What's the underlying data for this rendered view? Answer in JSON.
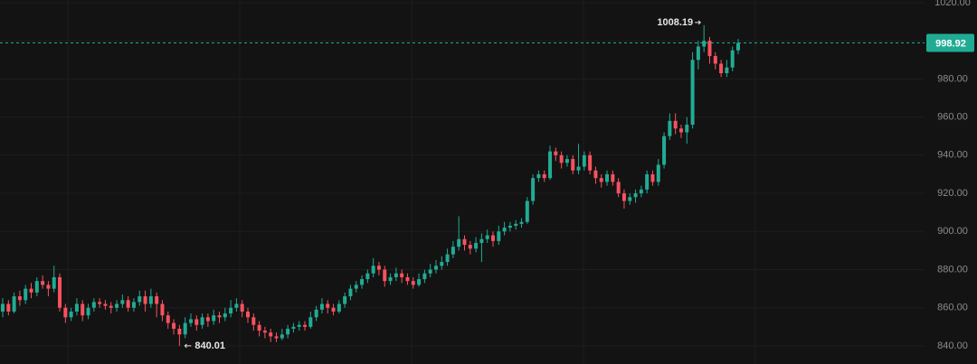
{
  "chart_data": {
    "type": "candlestick",
    "up_color": "#22ab94",
    "down_color": "#f7525f",
    "ylim": [
      830.5,
      1021.4
    ],
    "yticks": [
      {
        "value": 840,
        "label": "840.00"
      },
      {
        "value": 860,
        "label": "860.00"
      },
      {
        "value": 880,
        "label": "880.00"
      },
      {
        "value": 900,
        "label": "900.00"
      },
      {
        "value": 920,
        "label": "920.00"
      },
      {
        "value": 940,
        "label": "940.00"
      },
      {
        "value": 960,
        "label": "960.00"
      },
      {
        "value": 980,
        "label": "980.00"
      },
      {
        "value": 1000,
        "label": "1000.00"
      },
      {
        "value": 1020,
        "label": "1020.00"
      }
    ],
    "grid": true,
    "price_line": 998.92,
    "high_label": 1008.19,
    "low_label": 840.01,
    "candles": [
      [
        858,
        865,
        855,
        862
      ],
      [
        862,
        864,
        856,
        858
      ],
      [
        858,
        868,
        857,
        866
      ],
      [
        866,
        869,
        861,
        864
      ],
      [
        864,
        872,
        862,
        870
      ],
      [
        870,
        873,
        865,
        868
      ],
      [
        868,
        876,
        866,
        874
      ],
      [
        874,
        877,
        870,
        872
      ],
      [
        872,
        874,
        866,
        870
      ],
      [
        870,
        882,
        868,
        876
      ],
      [
        876,
        878,
        858,
        860
      ],
      [
        860,
        862,
        852,
        855
      ],
      [
        855,
        860,
        853,
        858
      ],
      [
        858,
        865,
        856,
        862
      ],
      [
        862,
        864,
        853,
        856
      ],
      [
        856,
        862,
        854,
        860
      ],
      [
        860,
        865,
        858,
        863
      ],
      [
        863,
        865,
        860,
        862
      ],
      [
        862,
        864,
        859,
        861
      ],
      [
        861,
        863,
        857,
        860
      ],
      [
        860,
        864,
        858,
        862
      ],
      [
        862,
        867,
        860,
        864
      ],
      [
        864,
        866,
        858,
        860
      ],
      [
        860,
        865,
        858,
        863
      ],
      [
        863,
        869,
        861,
        866
      ],
      [
        866,
        869,
        858,
        862
      ],
      [
        862,
        870,
        860,
        866
      ],
      [
        866,
        868,
        855,
        862
      ],
      [
        862,
        864,
        853,
        856
      ],
      [
        856,
        858,
        849,
        852
      ],
      [
        852,
        854,
        846,
        849
      ],
      [
        849,
        851,
        840.01,
        846
      ],
      [
        846,
        855,
        844,
        852
      ],
      [
        852,
        857,
        850,
        854
      ],
      [
        854,
        856,
        848,
        851
      ],
      [
        851,
        857,
        849,
        855
      ],
      [
        855,
        857,
        850,
        853
      ],
      [
        853,
        859,
        851,
        856
      ],
      [
        856,
        858,
        852,
        855
      ],
      [
        855,
        860,
        853,
        857
      ],
      [
        857,
        864,
        855,
        860
      ],
      [
        860,
        865,
        858,
        862
      ],
      [
        862,
        864,
        855,
        858
      ],
      [
        858,
        860,
        852,
        855
      ],
      [
        855,
        857,
        848,
        851
      ],
      [
        851,
        853,
        845,
        848
      ],
      [
        848,
        850,
        844,
        847
      ],
      [
        847,
        849,
        842,
        845
      ],
      [
        845,
        847,
        842,
        844
      ],
      [
        844,
        849,
        843,
        846
      ],
      [
        846,
        851,
        844,
        849
      ],
      [
        849,
        852,
        847,
        850
      ],
      [
        850,
        853,
        848,
        851
      ],
      [
        851,
        853,
        848,
        850
      ],
      [
        850,
        858,
        849,
        855
      ],
      [
        855,
        861,
        853,
        859
      ],
      [
        859,
        865,
        857,
        862
      ],
      [
        862,
        864,
        857,
        860
      ],
      [
        860,
        862,
        856,
        858
      ],
      [
        858,
        864,
        857,
        862
      ],
      [
        862,
        868,
        860,
        866
      ],
      [
        866,
        872,
        864,
        870
      ],
      [
        870,
        874,
        868,
        872
      ],
      [
        872,
        877,
        870,
        875
      ],
      [
        875,
        880,
        873,
        878
      ],
      [
        878,
        886,
        876,
        882
      ],
      [
        882,
        884,
        877,
        880
      ],
      [
        880,
        882,
        871,
        874
      ],
      [
        874,
        878,
        872,
        876
      ],
      [
        876,
        881,
        874,
        878
      ],
      [
        878,
        880,
        873,
        876
      ],
      [
        876,
        878,
        872,
        874
      ],
      [
        874,
        876,
        870,
        872
      ],
      [
        872,
        878,
        871,
        875
      ],
      [
        875,
        880,
        873,
        878
      ],
      [
        878,
        883,
        876,
        880
      ],
      [
        880,
        885,
        878,
        882
      ],
      [
        882,
        887,
        880,
        884
      ],
      [
        884,
        891,
        882,
        888
      ],
      [
        888,
        895,
        886,
        892
      ],
      [
        892,
        908,
        890,
        896
      ],
      [
        896,
        898,
        890,
        893
      ],
      [
        893,
        895,
        888,
        891
      ],
      [
        891,
        897,
        889,
        894
      ],
      [
        894,
        899,
        884,
        896
      ],
      [
        896,
        901,
        894,
        898
      ],
      [
        898,
        900,
        892,
        895
      ],
      [
        895,
        903,
        893,
        900
      ],
      [
        900,
        905,
        898,
        902
      ],
      [
        902,
        905,
        900,
        903
      ],
      [
        903,
        906,
        901,
        904
      ],
      [
        904,
        907,
        902,
        905
      ],
      [
        905,
        918,
        904,
        916
      ],
      [
        916,
        930,
        914,
        928
      ],
      [
        928,
        932,
        926,
        930
      ],
      [
        930,
        932,
        926,
        928
      ],
      [
        928,
        945,
        927,
        942
      ],
      [
        942,
        944,
        937,
        940
      ],
      [
        940,
        942,
        933,
        936
      ],
      [
        936,
        940,
        934,
        938
      ],
      [
        938,
        940,
        930,
        932
      ],
      [
        932,
        946,
        930,
        934
      ],
      [
        934,
        942,
        932,
        940
      ],
      [
        940,
        942,
        930,
        932
      ],
      [
        932,
        934,
        925,
        928
      ],
      [
        928,
        930,
        923,
        926
      ],
      [
        926,
        932,
        924,
        930
      ],
      [
        930,
        932,
        924,
        926
      ],
      [
        926,
        928,
        918,
        920
      ],
      [
        920,
        922,
        912,
        916
      ],
      [
        916,
        920,
        914,
        918
      ],
      [
        918,
        922,
        915,
        920
      ],
      [
        920,
        924,
        918,
        922
      ],
      [
        922,
        932,
        920,
        930
      ],
      [
        930,
        932,
        924,
        926
      ],
      [
        926,
        938,
        924,
        935
      ],
      [
        935,
        952,
        933,
        950
      ],
      [
        950,
        962,
        948,
        958
      ],
      [
        958,
        962,
        951,
        954
      ],
      [
        954,
        956,
        949,
        952
      ],
      [
        952,
        960,
        946,
        956
      ],
      [
        956,
        994,
        954,
        990
      ],
      [
        990,
        1000,
        985,
        997
      ],
      [
        997,
        1008.19,
        994,
        1000
      ],
      [
        1000,
        1002,
        988,
        992
      ],
      [
        992,
        994,
        985,
        988
      ],
      [
        988,
        990,
        981,
        983
      ],
      [
        983,
        990,
        981,
        986
      ],
      [
        986,
        997,
        984,
        995
      ],
      [
        995,
        1001,
        993,
        998.92
      ]
    ]
  }
}
